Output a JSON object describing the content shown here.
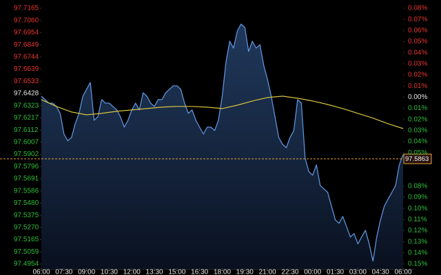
{
  "chart_data": {
    "type": "line",
    "xlim": [
      0,
      1440
    ],
    "xticks": [
      {
        "value": 0,
        "label": "06:00"
      },
      {
        "value": 90,
        "label": "07:30"
      },
      {
        "value": 180,
        "label": "09:00"
      },
      {
        "value": 270,
        "label": "10:30"
      },
      {
        "value": 360,
        "label": "12:00"
      },
      {
        "value": 450,
        "label": "13:30"
      },
      {
        "value": 540,
        "label": "15:00"
      },
      {
        "value": 630,
        "label": "16:30"
      },
      {
        "value": 720,
        "label": "18:00"
      },
      {
        "value": 810,
        "label": "19:30"
      },
      {
        "value": 900,
        "label": "21:00"
      },
      {
        "value": 990,
        "label": "22:30"
      },
      {
        "value": 1080,
        "label": "00:00"
      },
      {
        "value": 1170,
        "label": "01:30"
      },
      {
        "value": 1260,
        "label": "03:00"
      },
      {
        "value": 1350,
        "label": "04:30"
      },
      {
        "value": 1440,
        "label": "06:00"
      }
    ],
    "ylim": [
      97.4954,
      97.7165
    ],
    "yticks": [
      97.7165,
      {
        "value": 97.706,
        "label": "97.7060"
      },
      97.6954,
      97.6849,
      97.6744,
      97.6639,
      97.6533,
      97.6428,
      97.6323,
      97.6217,
      97.6112,
      97.6007,
      97.5902,
      97.5796,
      97.5691,
      97.5586,
      {
        "value": 97.548,
        "label": "97.5480"
      },
      97.5375,
      {
        "value": 97.527,
        "label": "97.5270"
      },
      97.5165,
      97.5059,
      97.4954
    ],
    "y2lim": [
      -0.15,
      0.08
    ],
    "y2ticks": [
      {
        "value": 0.08,
        "label": "0.08%"
      },
      {
        "value": 0.07,
        "label": "0.07%"
      },
      {
        "value": 0.06,
        "label": "0.06%"
      },
      {
        "value": 0.05,
        "label": "0.05%"
      },
      {
        "value": 0.04,
        "label": "0.04%"
      },
      {
        "value": 0.03,
        "label": "0.03%"
      },
      {
        "value": 0.02,
        "label": "0.02%"
      },
      {
        "value": 0.01,
        "label": "0.01%"
      },
      {
        "value": 0,
        "label": "0.00%"
      },
      {
        "value": -0.01,
        "label": "0.01%"
      },
      {
        "value": -0.02,
        "label": "0.02%"
      },
      {
        "value": -0.03,
        "label": "0.03%"
      },
      {
        "value": -0.04,
        "label": "0.04%"
      },
      {
        "value": -0.05,
        "label": "0.05%"
      },
      {
        "value": -0.08,
        "label": "0.08%"
      },
      {
        "value": -0.09,
        "label": "0.09%"
      },
      {
        "value": -0.1,
        "label": "0.10%"
      },
      {
        "value": -0.11,
        "label": "0.11%"
      },
      {
        "value": -0.12,
        "label": "0.12%"
      },
      {
        "value": -0.13,
        "label": "0.13%"
      },
      {
        "value": -0.14,
        "label": "0.14%"
      },
      {
        "value": -0.15,
        "label": "0.15%"
      }
    ],
    "up_color": "#e8362e",
    "down_color": "#2fbf3a",
    "flat_color": "#e8e8e8",
    "current_price": 97.5863,
    "current_price_color": "#e9a23b",
    "series": [
      {
        "color": "#5d93dc",
        "area": true,
        "x": [
          0,
          15,
          30,
          45,
          60,
          75,
          90,
          105,
          120,
          135,
          150,
          165,
          180,
          195,
          210,
          225,
          240,
          255,
          270,
          285,
          300,
          315,
          330,
          345,
          360,
          375,
          390,
          405,
          420,
          435,
          450,
          465,
          480,
          495,
          510,
          525,
          540,
          555,
          570,
          585,
          600,
          615,
          630,
          645,
          660,
          675,
          690,
          705,
          720,
          735,
          750,
          765,
          780,
          795,
          810,
          825,
          840,
          855,
          870,
          885,
          900,
          915,
          930,
          945,
          960,
          975,
          990,
          1005,
          1020,
          1035,
          1050,
          1065,
          1080,
          1095,
          1110,
          1125,
          1140,
          1155,
          1170,
          1185,
          1200,
          1215,
          1230,
          1245,
          1260,
          1275,
          1290,
          1305,
          1320,
          1335,
          1350,
          1365,
          1380,
          1395,
          1410,
          1425,
          1440
        ],
        "values": [
          97.6405,
          97.6375,
          97.6345,
          97.6345,
          97.6316,
          97.6256,
          97.6078,
          97.6019,
          97.6048,
          97.6167,
          97.6256,
          97.6405,
          97.6464,
          97.6523,
          97.6197,
          97.6226,
          97.6375,
          97.6345,
          97.6345,
          97.6316,
          97.6286,
          97.6226,
          97.6137,
          97.6197,
          97.6286,
          97.6345,
          97.6286,
          97.6434,
          97.6405,
          97.6345,
          97.6316,
          97.6375,
          97.6375,
          97.6434,
          97.6464,
          97.6494,
          97.6494,
          97.6464,
          97.6345,
          97.6256,
          97.6286,
          97.6197,
          97.6137,
          97.6078,
          97.6137,
          97.6137,
          97.6108,
          97.6197,
          97.6405,
          97.6702,
          97.688,
          97.682,
          97.6969,
          97.7028,
          97.6999,
          97.6791,
          97.688,
          97.682,
          97.685,
          97.6672,
          97.6553,
          97.6405,
          97.6226,
          97.6048,
          97.5989,
          97.5959,
          97.6048,
          97.6108,
          97.6375,
          97.6345,
          97.587,
          97.5751,
          97.5722,
          97.5811,
          97.5632,
          97.5603,
          97.5573,
          97.5454,
          97.5335,
          97.5306,
          97.5365,
          97.5276,
          97.5187,
          97.5217,
          97.5128,
          97.5187,
          97.5246,
          97.5128,
          97.4979,
          97.5187,
          97.5335,
          97.5454,
          97.5514,
          97.5573,
          97.5632,
          97.5811,
          97.59
        ]
      },
      {
        "color": "#d8c43c",
        "area": false,
        "x": [
          0,
          60,
          120,
          180,
          240,
          300,
          360,
          420,
          480,
          540,
          600,
          660,
          720,
          780,
          840,
          900,
          960,
          1020,
          1080,
          1140,
          1200,
          1260,
          1320,
          1380,
          1440
        ],
        "values": [
          97.6375,
          97.6316,
          97.6268,
          97.6244,
          97.6256,
          97.6274,
          97.6286,
          97.6298,
          97.631,
          97.6316,
          97.6316,
          97.631,
          97.6298,
          97.6327,
          97.6363,
          97.6393,
          97.6405,
          97.6387,
          97.6363,
          97.6333,
          97.6298,
          97.6256,
          97.6215,
          97.6167,
          97.6125
        ]
      }
    ]
  }
}
